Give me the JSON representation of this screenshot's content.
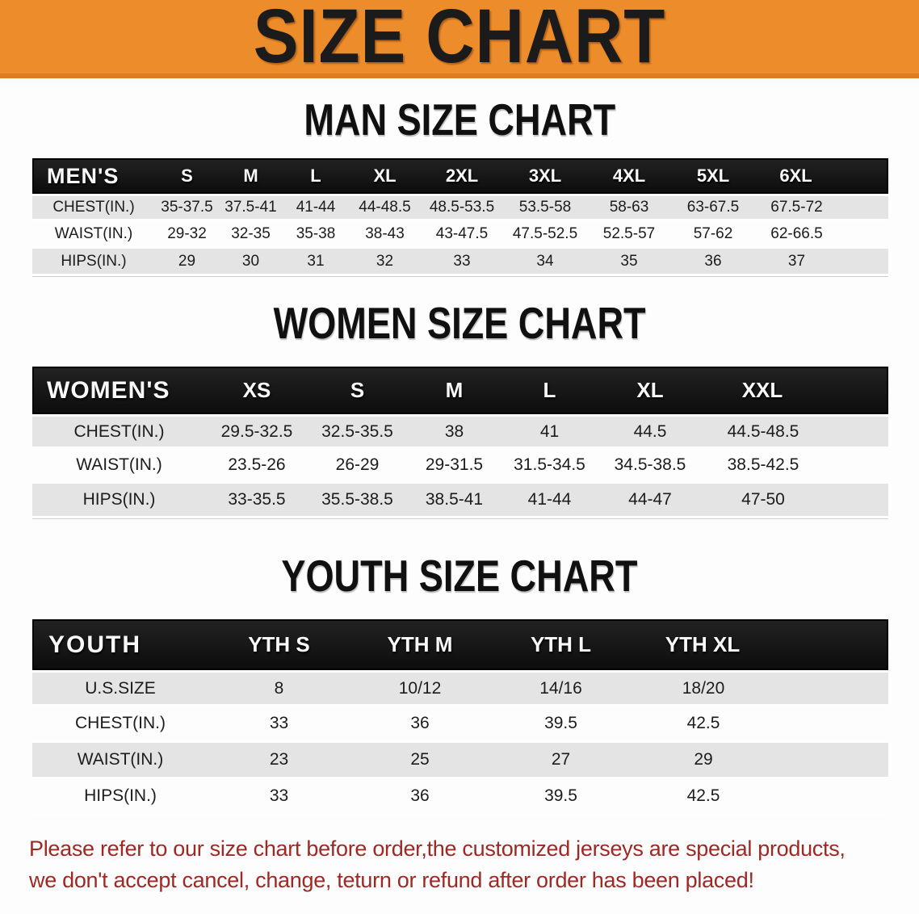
{
  "banner": {
    "title": "SIZE CHART"
  },
  "sections": [
    {
      "id": "men",
      "title": "MAN SIZE CHART",
      "table": {
        "header_label": "MEN'S",
        "columns": [
          "S",
          "M",
          "L",
          "XL",
          "2XL",
          "3XL",
          "4XL",
          "5XL",
          "6XL"
        ],
        "rows": [
          {
            "label": "CHEST(IN.)",
            "values": [
              "35-37.5",
              "37.5-41",
              "41-44",
              "44-48.5",
              "48.5-53.5",
              "53.5-58",
              "58-63",
              "63-67.5",
              "67.5-72"
            ]
          },
          {
            "label": "WAIST(IN.)",
            "values": [
              "29-32",
              "32-35",
              "35-38",
              "38-43",
              "43-47.5",
              "47.5-52.5",
              "52.5-57",
              "57-62",
              "62-66.5"
            ]
          },
          {
            "label": "HIPS(IN.)",
            "values": [
              "29",
              "30",
              "31",
              "32",
              "33",
              "34",
              "35",
              "36",
              "37"
            ]
          }
        ]
      }
    },
    {
      "id": "women",
      "title": "WOMEN SIZE CHART",
      "table": {
        "header_label": "WOMEN'S",
        "columns": [
          "XS",
          "S",
          "M",
          "L",
          "XL",
          "XXL"
        ],
        "rows": [
          {
            "label": "CHEST(IN.)",
            "values": [
              "29.5-32.5",
              "32.5-35.5",
              "38",
              "41",
              "44.5",
              "44.5-48.5"
            ]
          },
          {
            "label": "WAIST(IN.)",
            "values": [
              "23.5-26",
              "26-29",
              "29-31.5",
              "31.5-34.5",
              "34.5-38.5",
              "38.5-42.5"
            ]
          },
          {
            "label": "HIPS(IN.)",
            "values": [
              "33-35.5",
              "35.5-38.5",
              "38.5-41",
              "41-44",
              "44-47",
              "47-50"
            ]
          }
        ]
      }
    },
    {
      "id": "youth",
      "title": "YOUTH SIZE CHART",
      "table": {
        "header_label": "YOUTH",
        "columns": [
          "YTH S",
          "YTH M",
          "YTH L",
          "YTH XL"
        ],
        "rows": [
          {
            "label": "U.S.SIZE",
            "values": [
              "8",
              "10/12",
              "14/16",
              "18/20"
            ]
          },
          {
            "label": "CHEST(IN.)",
            "values": [
              "33",
              "36",
              "39.5",
              "42.5"
            ]
          },
          {
            "label": "WAIST(IN.)",
            "values": [
              "23",
              "25",
              "27",
              "29"
            ]
          },
          {
            "label": "HIPS(IN.)",
            "values": [
              "33",
              "36",
              "39.5",
              "42.5"
            ]
          }
        ]
      }
    }
  ],
  "disclaimer": {
    "lines": [
      "Please refer to our size chart before order,the customized jerseys are special products,",
      "we don't accept cancel, change, teturn or refund after order has been placed!"
    ]
  },
  "colors": {
    "banner_bg": "#ED8C2B",
    "banner_edge": "#DB7D20",
    "banner_text": "#1B1B1B",
    "header_bar": "#161616",
    "row_gray": "#E4E4E4",
    "disclaimer_red": "#9E2823"
  }
}
